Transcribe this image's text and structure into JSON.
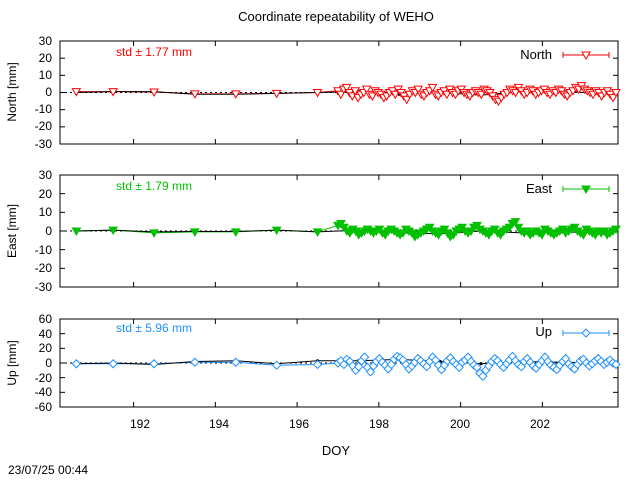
{
  "title": "Coordinate repeatability of WEHO",
  "xlabel": "DOY",
  "timestamp": "23/07/25 00:44",
  "x_ticks": [
    "192",
    "194",
    "196",
    "198",
    "200",
    "202"
  ],
  "xlim": [
    190.2,
    203.85
  ],
  "chart_data": [
    {
      "type": "scatter",
      "ylabel": "North [mm]",
      "legend": "North",
      "std_label": "std ± 1.77 mm",
      "color": "#ff0000",
      "marker": "triangle-down-open",
      "ylim": [
        -30,
        30
      ],
      "y_ticks": [
        "30",
        "20",
        "10",
        "0",
        "-10",
        "-20",
        "-30"
      ],
      "mean_line": {
        "x": [
          190.6,
          191.5,
          192.5,
          193.5,
          194.5,
          195.5,
          196.5,
          197.5,
          198.5,
          199.5,
          200.5,
          201.5,
          202.5,
          203.5
        ],
        "y": [
          0,
          0.5,
          0.5,
          -1,
          -1,
          -0.5,
          0,
          0.5,
          -1,
          0,
          -1.5,
          0.5,
          1,
          -1
        ]
      },
      "daily": {
        "x": [
          190.6,
          191.5,
          192.5,
          193.5,
          194.5,
          195.5,
          196.5
        ],
        "y": [
          0.5,
          0.5,
          0.3,
          -0.8,
          -0.8,
          -0.5,
          0
        ]
      },
      "subdaily": {
        "x_start": 197.0,
        "x_end": 203.8,
        "y": [
          1,
          -1,
          2,
          3,
          0,
          -2,
          1,
          -3,
          -1,
          0,
          2,
          -1,
          -2,
          1,
          0,
          -1,
          -3,
          -2,
          0,
          1,
          -1,
          2,
          0,
          -2,
          -4,
          -1,
          1,
          0,
          2,
          -1,
          -2,
          0,
          1,
          3,
          -1,
          -2,
          0,
          1,
          -1,
          2,
          0,
          -1,
          1,
          2,
          0,
          -1,
          -2,
          0,
          1,
          0,
          -1,
          2,
          1,
          0,
          -2,
          -4,
          -5,
          -3,
          -1,
          0,
          2,
          1,
          0,
          3,
          1,
          -1,
          0,
          2,
          1,
          -1,
          0,
          1,
          2,
          0,
          -1,
          1,
          0,
          2,
          1,
          -1,
          -2,
          0,
          1,
          3,
          2,
          4,
          2,
          1,
          0,
          -1,
          1,
          0,
          -2,
          0,
          1,
          -1,
          -3,
          0
        ]
      }
    },
    {
      "type": "scatter",
      "ylabel": "East [mm]",
      "legend": "East",
      "std_label": "std ± 1.79 mm",
      "color": "#00c000",
      "marker": "triangle-down-filled",
      "ylim": [
        -30,
        30
      ],
      "y_ticks": [
        "30",
        "20",
        "10",
        "0",
        "-10",
        "-20",
        "-30"
      ],
      "mean_line": {
        "x": [
          190.6,
          191.5,
          192.5,
          193.5,
          194.5,
          195.5,
          196.5,
          197.5,
          198.5,
          199.5,
          200.5,
          201.5,
          202.5,
          203.5
        ],
        "y": [
          0,
          0.5,
          -0.5,
          -0.3,
          -0.3,
          0.5,
          -0.5,
          0.5,
          -1,
          -1.5,
          0,
          -1,
          -0.5,
          -1
        ]
      },
      "daily": {
        "x": [
          190.6,
          191.5,
          192.5,
          193.5,
          194.5,
          195.5,
          196.5
        ],
        "y": [
          0,
          0.5,
          -1,
          -0.5,
          -0.5,
          0.5,
          -0.5
        ]
      },
      "subdaily": {
        "x_start": 197.0,
        "x_end": 203.8,
        "y": [
          3,
          4,
          2,
          0,
          -1,
          1,
          0,
          -2,
          -1,
          0,
          1,
          0,
          -1,
          0,
          1,
          -1,
          -2,
          0,
          1,
          0,
          -1,
          -2,
          -1,
          1,
          0,
          -1,
          -3,
          -2,
          -1,
          0,
          1,
          2,
          0,
          -1,
          -2,
          0,
          1,
          -1,
          -3,
          -2,
          0,
          1,
          2,
          0,
          -1,
          0,
          2,
          3,
          1,
          0,
          -1,
          -2,
          0,
          1,
          -1,
          -2,
          0,
          1,
          2,
          4,
          5,
          2,
          0,
          -1,
          0,
          -2,
          -1,
          0,
          -1,
          -2,
          1,
          0,
          -1,
          -2,
          -1,
          0,
          1,
          -1,
          0,
          1,
          2,
          0,
          -1,
          -2,
          1,
          0,
          -1,
          -2,
          0,
          -1,
          0,
          -2,
          -1,
          0,
          1
        ]
      }
    },
    {
      "type": "scatter",
      "ylabel": "Up [mm]",
      "legend": "Up",
      "std_label": "std ± 5.96 mm",
      "color": "#1e90ff",
      "marker": "diamond-open",
      "ylim": [
        -60,
        60
      ],
      "y_ticks": [
        "60",
        "40",
        "20",
        "0",
        "-20",
        "-40",
        "-60"
      ],
      "mean_line": {
        "x": [
          190.6,
          191.5,
          192.5,
          193.5,
          194.5,
          195.5,
          196.5,
          197.5,
          198.5,
          199.5,
          200.5,
          201.5,
          202.5,
          203.5
        ],
        "y": [
          -1,
          0,
          -2,
          2,
          3,
          -1,
          3,
          3,
          5,
          2,
          -1,
          2,
          1,
          0
        ]
      },
      "daily": {
        "x": [
          190.6,
          191.5,
          192.5,
          193.5,
          194.5,
          195.5,
          196.5
        ],
        "y": [
          -1,
          -1,
          -1,
          1,
          1,
          -3,
          -2
        ]
      },
      "subdaily": {
        "x_start": 197.0,
        "x_end": 203.8,
        "y": [
          0,
          3,
          -2,
          5,
          2,
          -4,
          -10,
          -5,
          3,
          8,
          -6,
          -12,
          -4,
          2,
          6,
          1,
          -3,
          -8,
          -2,
          5,
          9,
          7,
          4,
          -2,
          -8,
          -4,
          1,
          6,
          3,
          -1,
          -5,
          2,
          8,
          4,
          -3,
          -9,
          -3,
          3,
          7,
          2,
          -2,
          -6,
          1,
          4,
          8,
          2,
          -3,
          -6,
          -14,
          -18,
          -10,
          -4,
          2,
          6,
          3,
          -2,
          -6,
          -1,
          4,
          9,
          3,
          -2,
          -5,
          2,
          6,
          1,
          -4,
          -7,
          -2,
          3,
          8,
          2,
          -3,
          -6,
          -9,
          -3,
          2,
          6,
          -1,
          -5,
          -8,
          -2,
          3,
          5,
          0,
          -4,
          -1,
          3,
          6,
          2,
          -2,
          1,
          4,
          0,
          -2
        ]
      }
    }
  ]
}
